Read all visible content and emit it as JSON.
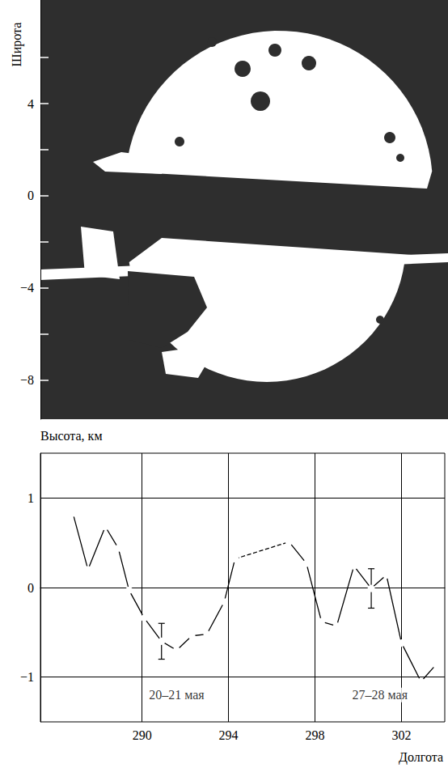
{
  "chart_data": [
    {
      "type": "image",
      "ylabel": "Широта",
      "ylim": [
        -9.7,
        8.5
      ],
      "yticks": [
        4,
        0,
        {
          "value": -4,
          "label": "−4"
        },
        {
          "value": -8,
          "label": "−8"
        }
      ],
      "minor_yticks": [
        6,
        2,
        -2,
        -6
      ],
      "tick_labels": "y"
    },
    {
      "type": "line",
      "xlabel": "Долгота",
      "ylabel": "Высота, км",
      "xlim": [
        285.3,
        304
      ],
      "xticks": [
        290,
        294,
        298,
        302
      ],
      "ylim": [
        -1.5,
        1.5
      ],
      "yticks": [
        {
          "value": -1,
          "label": "−1"
        },
        0,
        1
      ],
      "grid": true,
      "color": "#000000",
      "marker": "open_circle",
      "series": [
        {
          "line_style": "solid",
          "x": [
            286.8,
            287.5,
            288.3,
            288.9,
            289.4,
            290.1,
            290.9,
            291.6,
            292.3,
            293.0,
            293.8,
            294.3,
            null,
            296.8,
            297.6,
            298.3,
            299.0,
            299.8,
            300.6,
            301.3,
            302.0,
            302.9,
            303.6
          ],
          "values": [
            0.83,
            0.2,
            0.68,
            0.44,
            -0.03,
            -0.34,
            -0.6,
            -0.7,
            -0.54,
            -0.52,
            -0.16,
            0.32,
            null,
            0.51,
            0.27,
            -0.38,
            -0.43,
            0.24,
            -0.01,
            0.14,
            -0.62,
            -1.05,
            -0.86
          ],
          "errors": [
            null,
            null,
            null,
            null,
            null,
            null,
            0.2,
            null,
            null,
            null,
            null,
            null,
            null,
            null,
            null,
            null,
            null,
            null,
            0.22,
            null,
            null,
            null,
            null
          ]
        },
        {
          "line_style": "dashed",
          "x": [
            294.3,
            296.8
          ],
          "values": [
            0.32,
            0.51
          ]
        }
      ],
      "annotations": [
        {
          "text": "20–21 мая",
          "x": 291.6,
          "y": -1.2
        },
        {
          "text": "27–28 мая",
          "x": 301.0,
          "y": -1.2
        }
      ]
    }
  ]
}
